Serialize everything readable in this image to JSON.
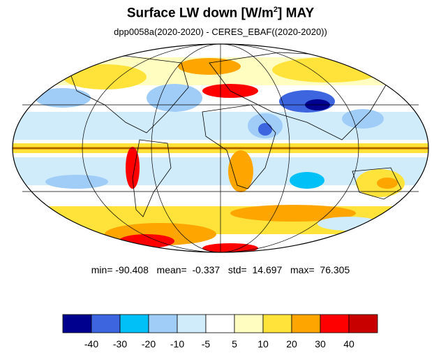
{
  "title": {
    "main": "Surface LW down [W/m",
    "sup": "2",
    "tail": "]  MAY"
  },
  "subtitle": "dpp0058a(2020-2020) - CERES_EBAF((2020-2020))",
  "stats": {
    "text": "min= -90.408   mean=  -0.337   std=  14.697   max=  76.305",
    "min": -90.408,
    "mean": -0.337,
    "std": 14.697,
    "max": 76.305
  },
  "colorbar": {
    "colors": [
      "#00008f",
      "#3d65e0",
      "#00c0f8",
      "#a0cdf8",
      "#d0ecfa",
      "#ffffff",
      "#fffdc0",
      "#ffe23a",
      "#ffa500",
      "#ff0000",
      "#c80000"
    ],
    "tick_labels": [
      "-40",
      "-30",
      "-20",
      "-10",
      "-5",
      "5",
      "10",
      "20",
      "30",
      "40"
    ]
  },
  "map": {
    "projection": "Mollweide",
    "background_color": "#ffffff",
    "outline_color": "#000000",
    "grid_color": "#000000"
  }
}
